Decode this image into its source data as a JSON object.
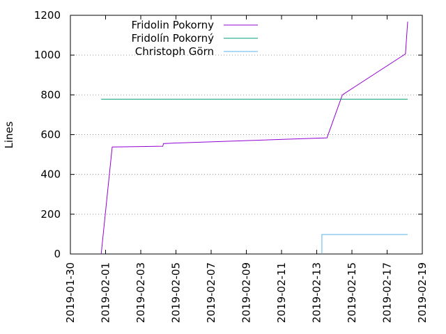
{
  "chart_data": {
    "type": "line",
    "title": "",
    "xlabel": "",
    "ylabel": "Lines",
    "xlim": [
      "2019-01-30",
      "2019-02-19"
    ],
    "ylim": [
      0,
      1200
    ],
    "x_ticks": [
      "2019-01-30",
      "2019-02-01",
      "2019-02-03",
      "2019-02-05",
      "2019-02-07",
      "2019-02-09",
      "2019-02-11",
      "2019-02-13",
      "2019-02-15",
      "2019-02-17",
      "2019-02-19"
    ],
    "y_ticks": [
      "0",
      "200",
      "400",
      "600",
      "800",
      "1000",
      "1200"
    ],
    "grid": "horizontal dotted",
    "legend_position": "top-left",
    "series": [
      {
        "name": "Fridolin Pokorny",
        "color": "#9400d3",
        "points": [
          [
            "2019-01-31T18:00",
            0
          ],
          [
            "2019-02-01T09:00",
            538
          ],
          [
            "2019-02-04T06:00",
            542
          ],
          [
            "2019-02-04T07:00",
            555
          ],
          [
            "2019-02-05T00:00",
            558
          ],
          [
            "2019-02-13T14:00",
            584
          ],
          [
            "2019-02-14T11:00",
            800
          ],
          [
            "2019-02-18T01:00",
            1006
          ],
          [
            "2019-02-18T04:00",
            1168
          ]
        ]
      },
      {
        "name": "Fridolín Pokorný",
        "color": "#009e73",
        "points": [
          [
            "2019-01-31T18:00",
            778
          ],
          [
            "2019-02-18T04:00",
            778
          ]
        ]
      },
      {
        "name": "Christoph Görn",
        "color": "#56b4e9",
        "points": [
          [
            "2019-02-13T07:00",
            0
          ],
          [
            "2019-02-13T07:00",
            98
          ],
          [
            "2019-02-18T04:00",
            98
          ]
        ]
      }
    ]
  }
}
